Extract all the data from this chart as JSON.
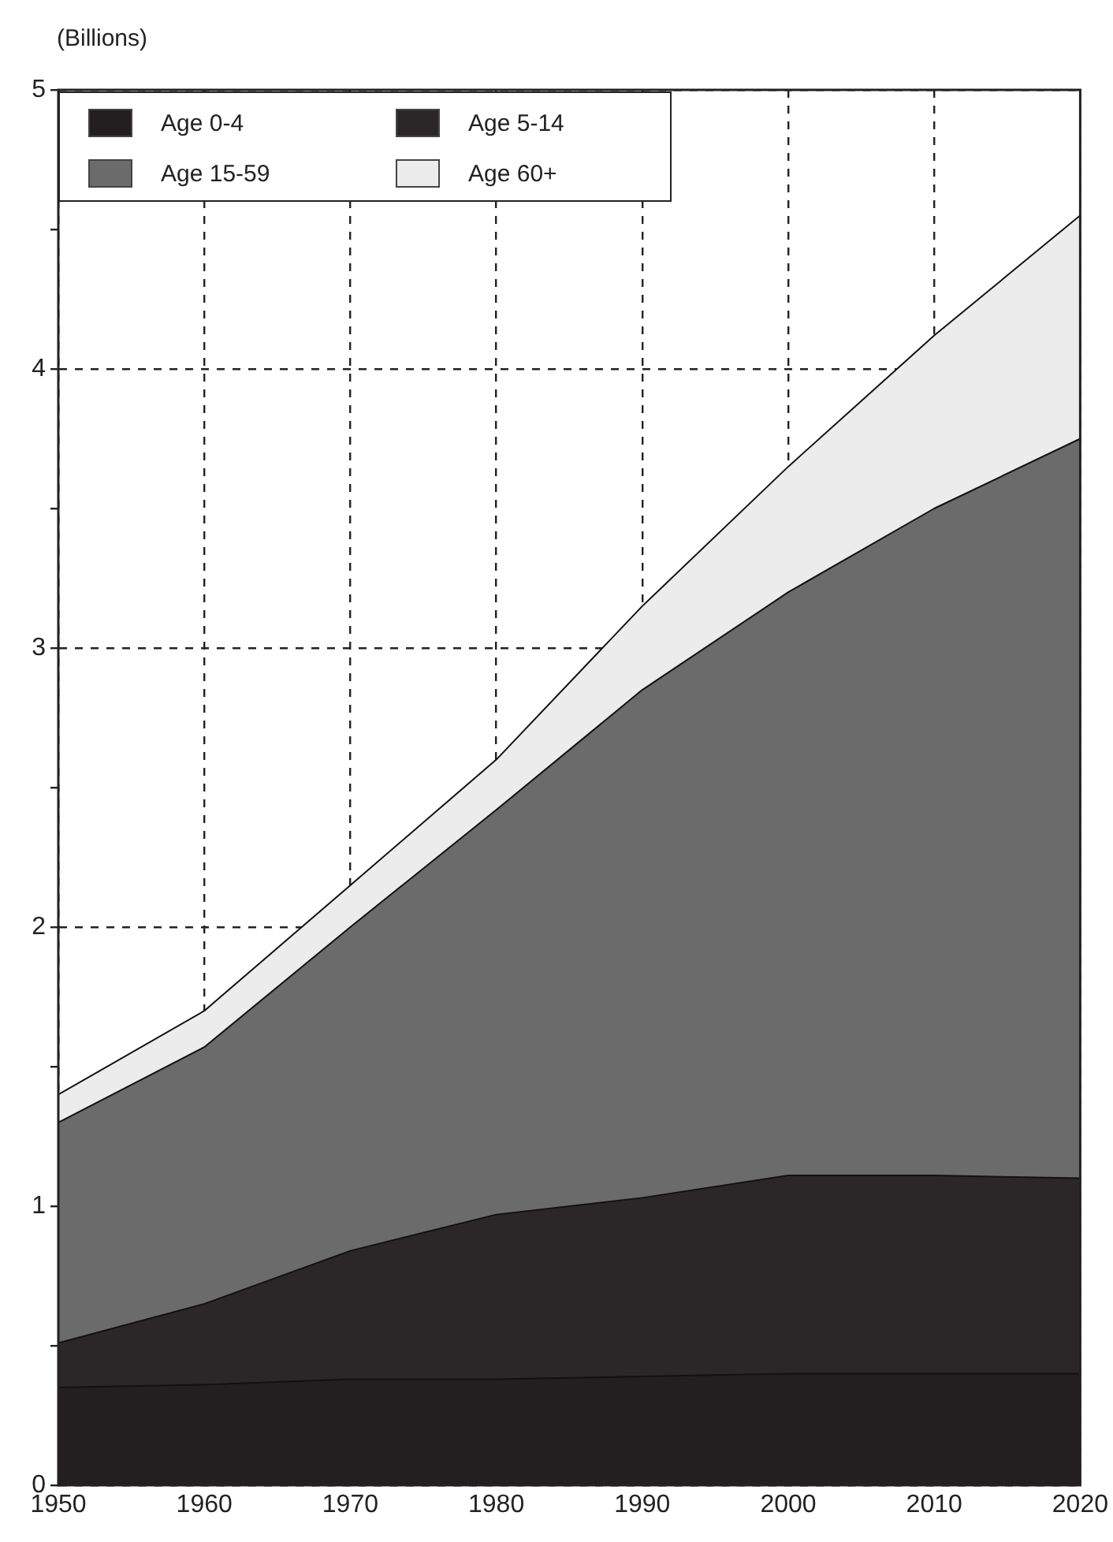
{
  "chart_data": {
    "type": "area",
    "ylabel": "(Billions)",
    "stacked": true,
    "x": [
      1950,
      1960,
      1970,
      1980,
      1990,
      2000,
      2010,
      2020
    ],
    "series": [
      {
        "name": "Age 0-4",
        "color": "#231f20",
        "values": [
          0.35,
          0.36,
          0.38,
          0.38,
          0.39,
          0.4,
          0.4,
          0.4
        ]
      },
      {
        "name": "Age 5-14",
        "color": "#2b2728",
        "values": [
          0.16,
          0.29,
          0.46,
          0.59,
          0.64,
          0.71,
          0.71,
          0.7
        ]
      },
      {
        "name": "Age 15-59",
        "color": "#6b6b6b",
        "values": [
          0.79,
          0.92,
          1.16,
          1.45,
          1.82,
          2.09,
          2.39,
          2.65
        ]
      },
      {
        "name": "Age 60+",
        "color": "#ececec",
        "values": [
          0.1,
          0.13,
          0.15,
          0.18,
          0.3,
          0.45,
          0.62,
          0.8
        ]
      }
    ],
    "xlim": [
      1950,
      2020
    ],
    "xticks": [
      1950,
      1960,
      1970,
      1980,
      1990,
      2000,
      2010,
      2020
    ],
    "ylim": [
      0,
      5
    ],
    "yticks": [
      0,
      {
        "value": 0.5,
        "label": null
      },
      1,
      {
        "value": 1.5,
        "label": null
      },
      2,
      {
        "value": 2.5,
        "label": null
      },
      3,
      {
        "value": 3.5,
        "label": null
      },
      4,
      {
        "value": 4.5,
        "label": null
      },
      5
    ],
    "grid": true,
    "line_style": "dashed",
    "legend": "top left"
  }
}
